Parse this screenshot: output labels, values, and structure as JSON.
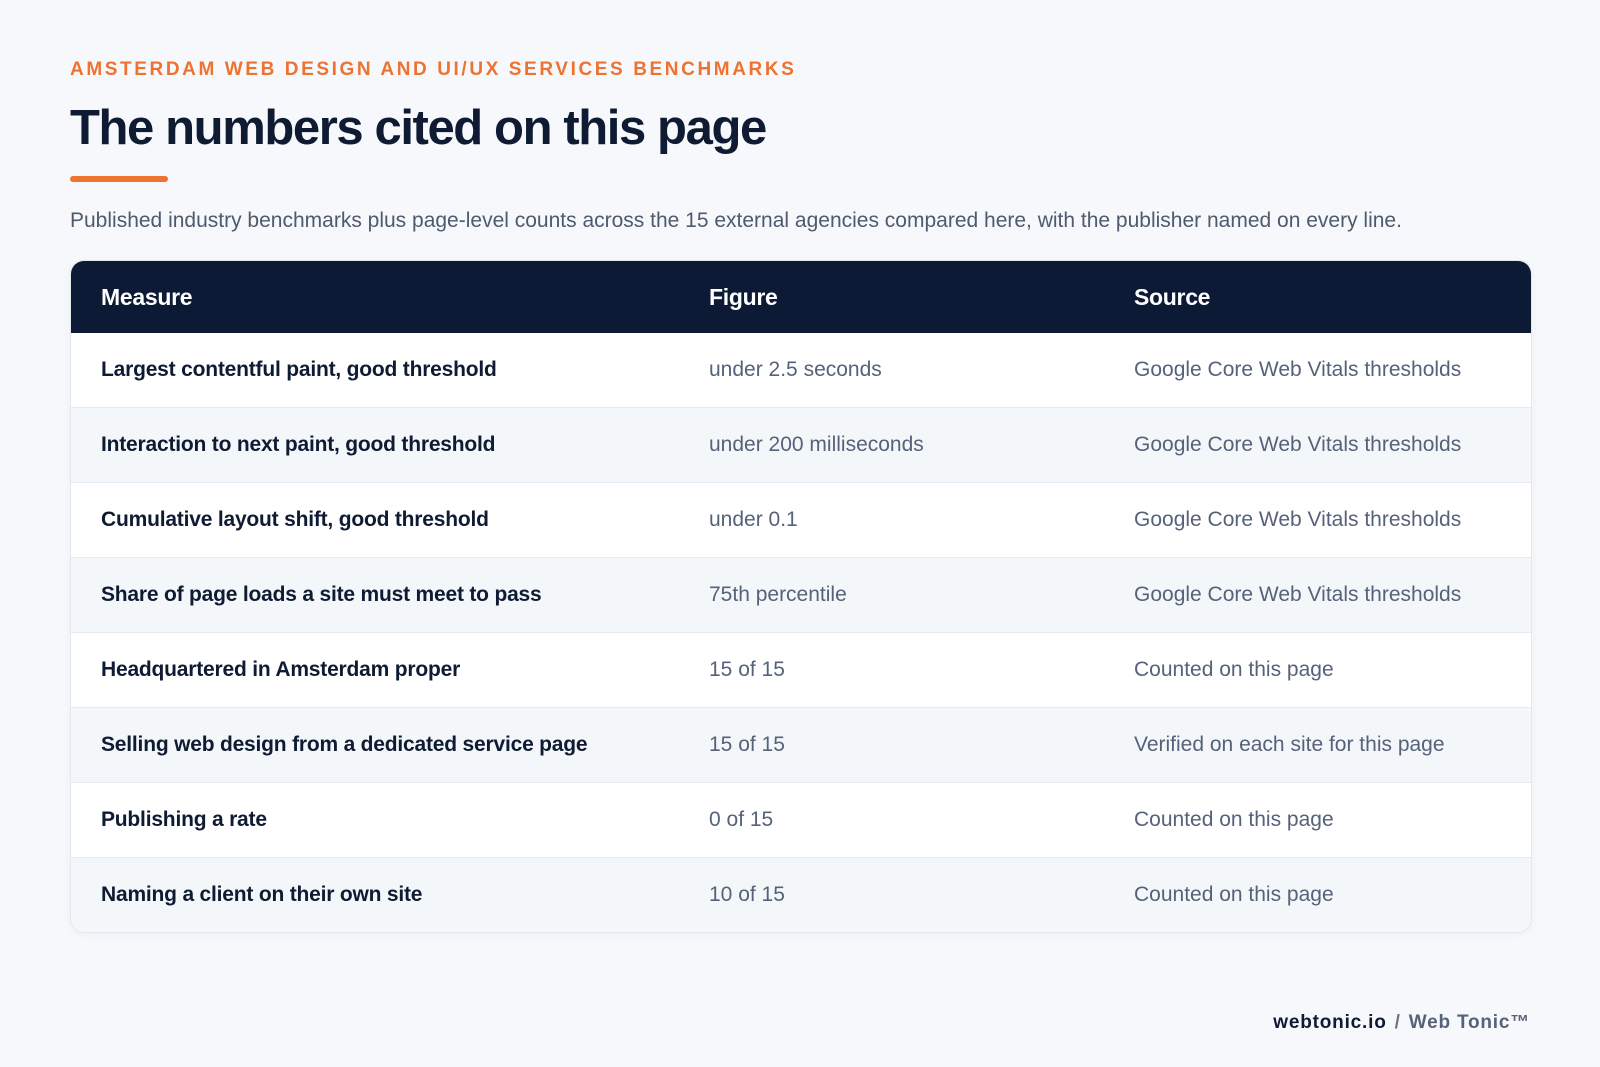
{
  "header": {
    "eyebrow": "AMSTERDAM WEB DESIGN AND UI/UX SERVICES BENCHMARKS",
    "title": "The numbers cited on this page",
    "subtitle": "Published industry benchmarks plus page-level counts across the 15 external agencies compared here, with the publisher named on every line."
  },
  "table": {
    "columns": [
      "Measure",
      "Figure",
      "Source"
    ],
    "rows": [
      {
        "measure": "Largest contentful paint, good threshold",
        "figure": "under 2.5 seconds",
        "source": "Google Core Web Vitals thresholds"
      },
      {
        "measure": "Interaction to next paint, good threshold",
        "figure": "under 200 milliseconds",
        "source": "Google Core Web Vitals thresholds"
      },
      {
        "measure": "Cumulative layout shift, good threshold",
        "figure": "under 0.1",
        "source": "Google Core Web Vitals thresholds"
      },
      {
        "measure": "Share of page loads a site must meet to pass",
        "figure": "75th percentile",
        "source": "Google Core Web Vitals thresholds"
      },
      {
        "measure": "Headquartered in Amsterdam proper",
        "figure": "15 of 15",
        "source": "Counted on this page"
      },
      {
        "measure": "Selling web design from a dedicated service page",
        "figure": "15 of 15",
        "source": "Verified on each site for this page"
      },
      {
        "measure": "Publishing a rate",
        "figure": "0 of 15",
        "source": "Counted on this page"
      },
      {
        "measure": "Naming a client on their own site",
        "figure": "10 of 15",
        "source": "Counted on this page"
      }
    ]
  },
  "footer": {
    "domain": "webtonic.io",
    "separator": "/",
    "brand": "Web Tonic™"
  },
  "colors": {
    "accent": "#ee7230",
    "header_bg": "#0c1a35",
    "page_bg": "#f6f8fb"
  }
}
